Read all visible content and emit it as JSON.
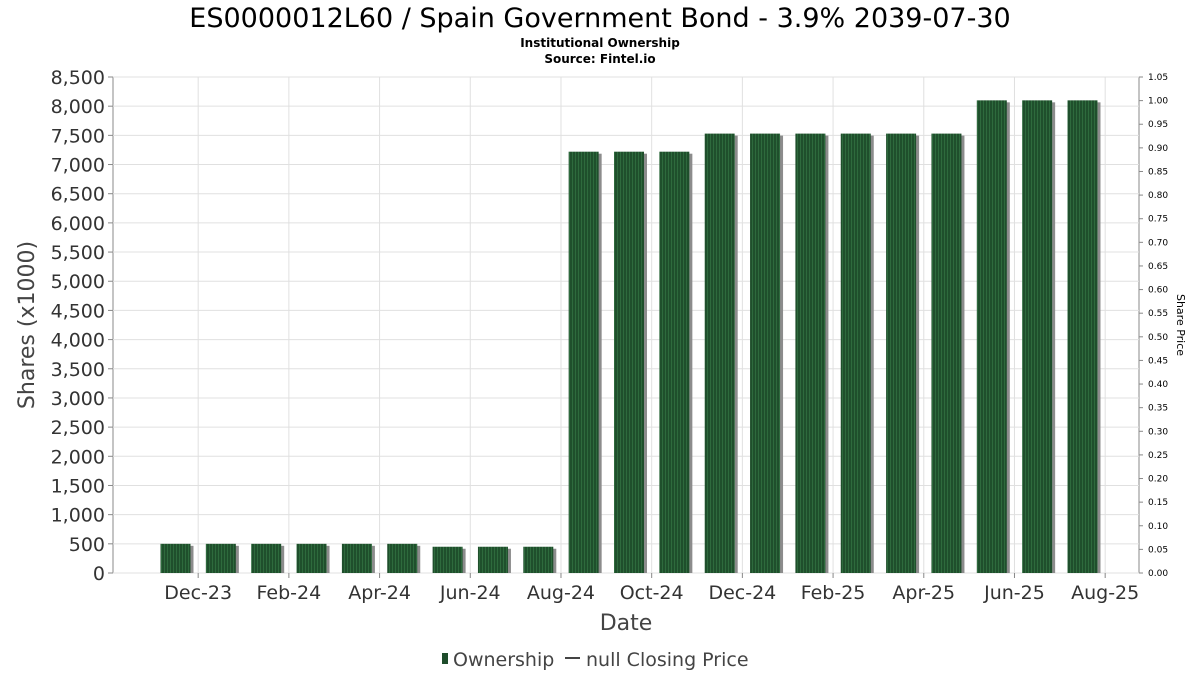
{
  "chart_data": {
    "type": "bar",
    "title": "ES0000012L60 / Spain Government Bond - 3.9% 2039-07-30",
    "subtitle_lines": [
      "Institutional Ownership",
      "Source: Fintel.io"
    ],
    "xlabel": "Date",
    "ylabel": "Shares (x1000)",
    "y2label": "Share Price",
    "ylim": [
      0,
      8500
    ],
    "y2lim": [
      0,
      1.05
    ],
    "grid": true,
    "legend_position": "bottom-center",
    "x_tick_labels": [
      "Dec-23",
      "Feb-24",
      "Apr-24",
      "Jun-24",
      "Aug-24",
      "Oct-24",
      "Dec-24",
      "Feb-25",
      "Apr-25",
      "Jun-25",
      "Aug-25"
    ],
    "y_tick_labels": [
      "0",
      "500",
      "1,000",
      "1,500",
      "2,000",
      "2,500",
      "3,000",
      "3,500",
      "4,000",
      "4,500",
      "5,000",
      "5,500",
      "6,000",
      "6,500",
      "7,000",
      "7,500",
      "8,000",
      "8,500"
    ],
    "y2_tick_labels": [
      "0.00",
      "0.05",
      "0.10",
      "0.15",
      "0.20",
      "0.25",
      "0.30",
      "0.35",
      "0.40",
      "0.45",
      "0.50",
      "0.55",
      "0.60",
      "0.65",
      "0.70",
      "0.75",
      "0.80",
      "0.85",
      "0.90",
      "0.95",
      "1.00",
      "1.05"
    ],
    "series": [
      {
        "name": "Ownership",
        "color": "#1e4d2b",
        "values": [
          500,
          500,
          500,
          500,
          500,
          500,
          450,
          450,
          450,
          7220,
          7220,
          7220,
          7530,
          7530,
          7530,
          7530,
          7530,
          7530,
          8100,
          8100,
          8100
        ]
      }
    ],
    "legend": [
      "Ownership",
      "null Closing Price"
    ]
  }
}
